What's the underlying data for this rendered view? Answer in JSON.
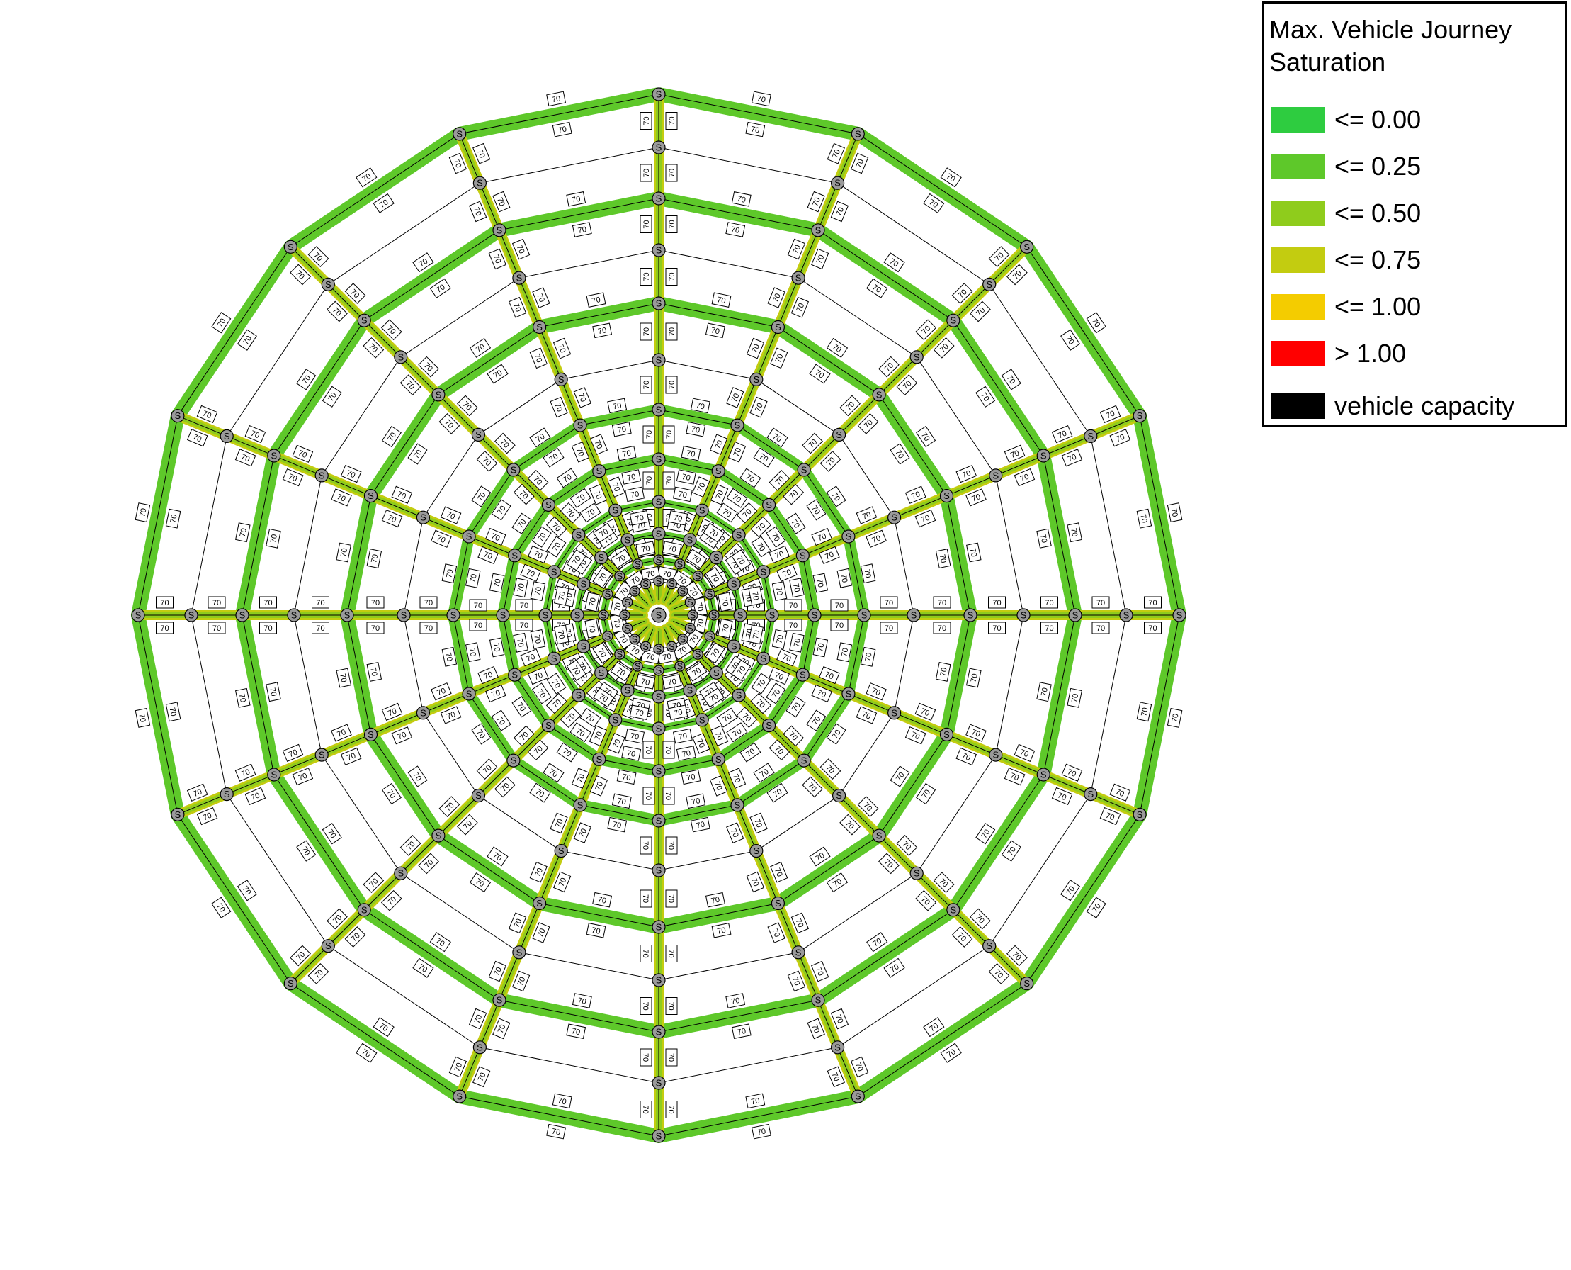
{
  "legend": {
    "title_line1": "Max. Vehicle Journey",
    "title_line2": "Saturation",
    "items": [
      {
        "label": "<= 0.00",
        "color": "#2ecc40"
      },
      {
        "label": "<= 0.25",
        "color": "#5ec82a"
      },
      {
        "label": "<= 0.50",
        "color": "#8fcc1c"
      },
      {
        "label": "<= 0.75",
        "color": "#c3cc10"
      },
      {
        "label": "<= 1.00",
        "color": "#f4cc00"
      },
      {
        "label": "> 1.00",
        "color": "#ff0000"
      },
      {
        "label": "vehicle capacity",
        "color": "#000000"
      }
    ]
  },
  "network": {
    "capacity_label": "70",
    "stop_label": "S",
    "spokes": 16,
    "rings": 10,
    "ring_color": "#5ec82a",
    "spoke_color": "#8fcc1c",
    "spoke_edge_color": "#c3cc10",
    "link_color": "#000000",
    "stop_fill": "#9a9a9a"
  }
}
